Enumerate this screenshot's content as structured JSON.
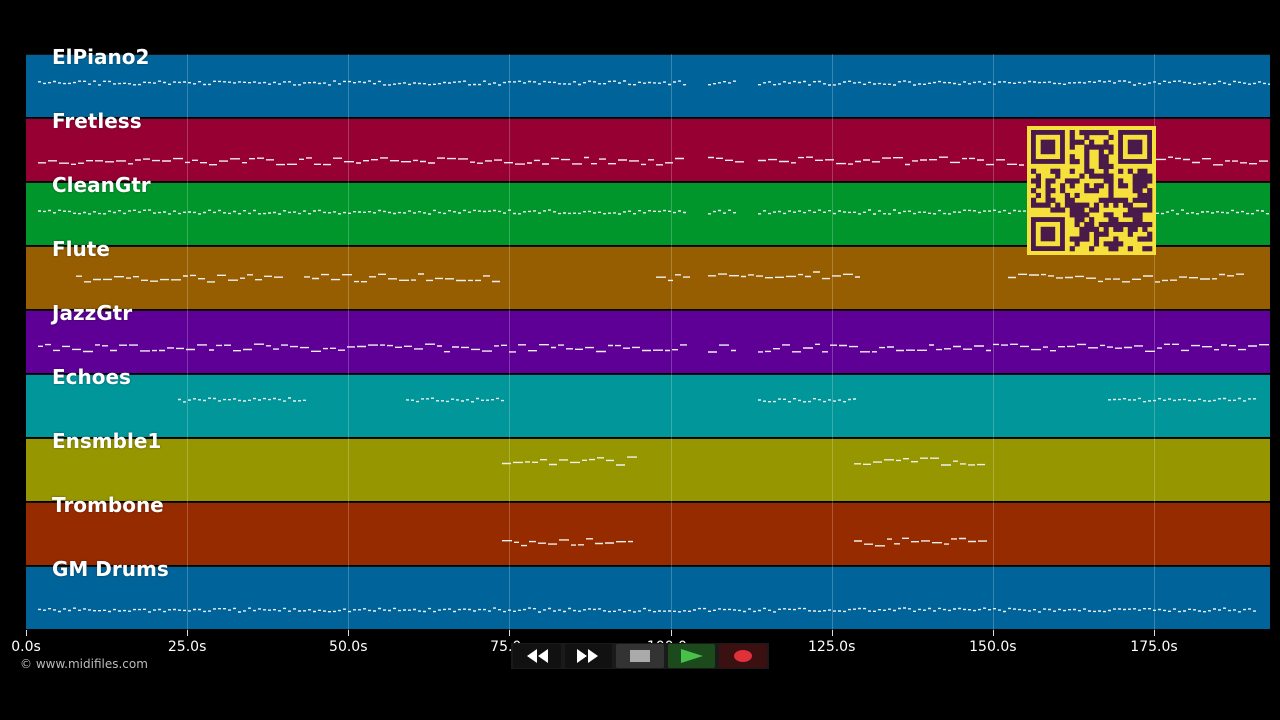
{
  "tracks": [
    {
      "name": "ElPiano2",
      "color": "#00649a"
    },
    {
      "name": "Fretless",
      "color": "#960033"
    },
    {
      "name": "CleanGtr",
      "color": "#00962b"
    },
    {
      "name": "Flute",
      "color": "#965e00"
    },
    {
      "name": "JazzGtr",
      "color": "#5e0096"
    },
    {
      "name": "Echoes",
      "color": "#00969a"
    },
    {
      "name": "Ensmble1",
      "color": "#969600"
    },
    {
      "name": "Trombone",
      "color": "#962b00"
    },
    {
      "name": "GM Drums",
      "color": "#00649a"
    }
  ],
  "timeline": {
    "ticks": [
      "0.0s",
      "25.0s",
      "50.0s",
      "75.0s",
      "100.0s",
      "125.0s",
      "150.0s",
      "175.0s"
    ],
    "tick_seconds": [
      0,
      25,
      50,
      75,
      100,
      125,
      150,
      175
    ],
    "duration_seconds": 193
  },
  "copyright": "© www.midifiles.com",
  "transport": {
    "buttons": [
      {
        "name": "rewind-button",
        "icon": "rewind-icon"
      },
      {
        "name": "fast-forward-button",
        "icon": "fast-forward-icon"
      },
      {
        "name": "stop-button",
        "icon": "stop-icon"
      },
      {
        "name": "play-button",
        "icon": "play-icon",
        "color": "#49c04a"
      },
      {
        "name": "record-button",
        "icon": "record-icon",
        "color": "#e0303a"
      }
    ]
  },
  "qr": {
    "color": "#f6e03b",
    "dark": "#4a1a4a"
  }
}
